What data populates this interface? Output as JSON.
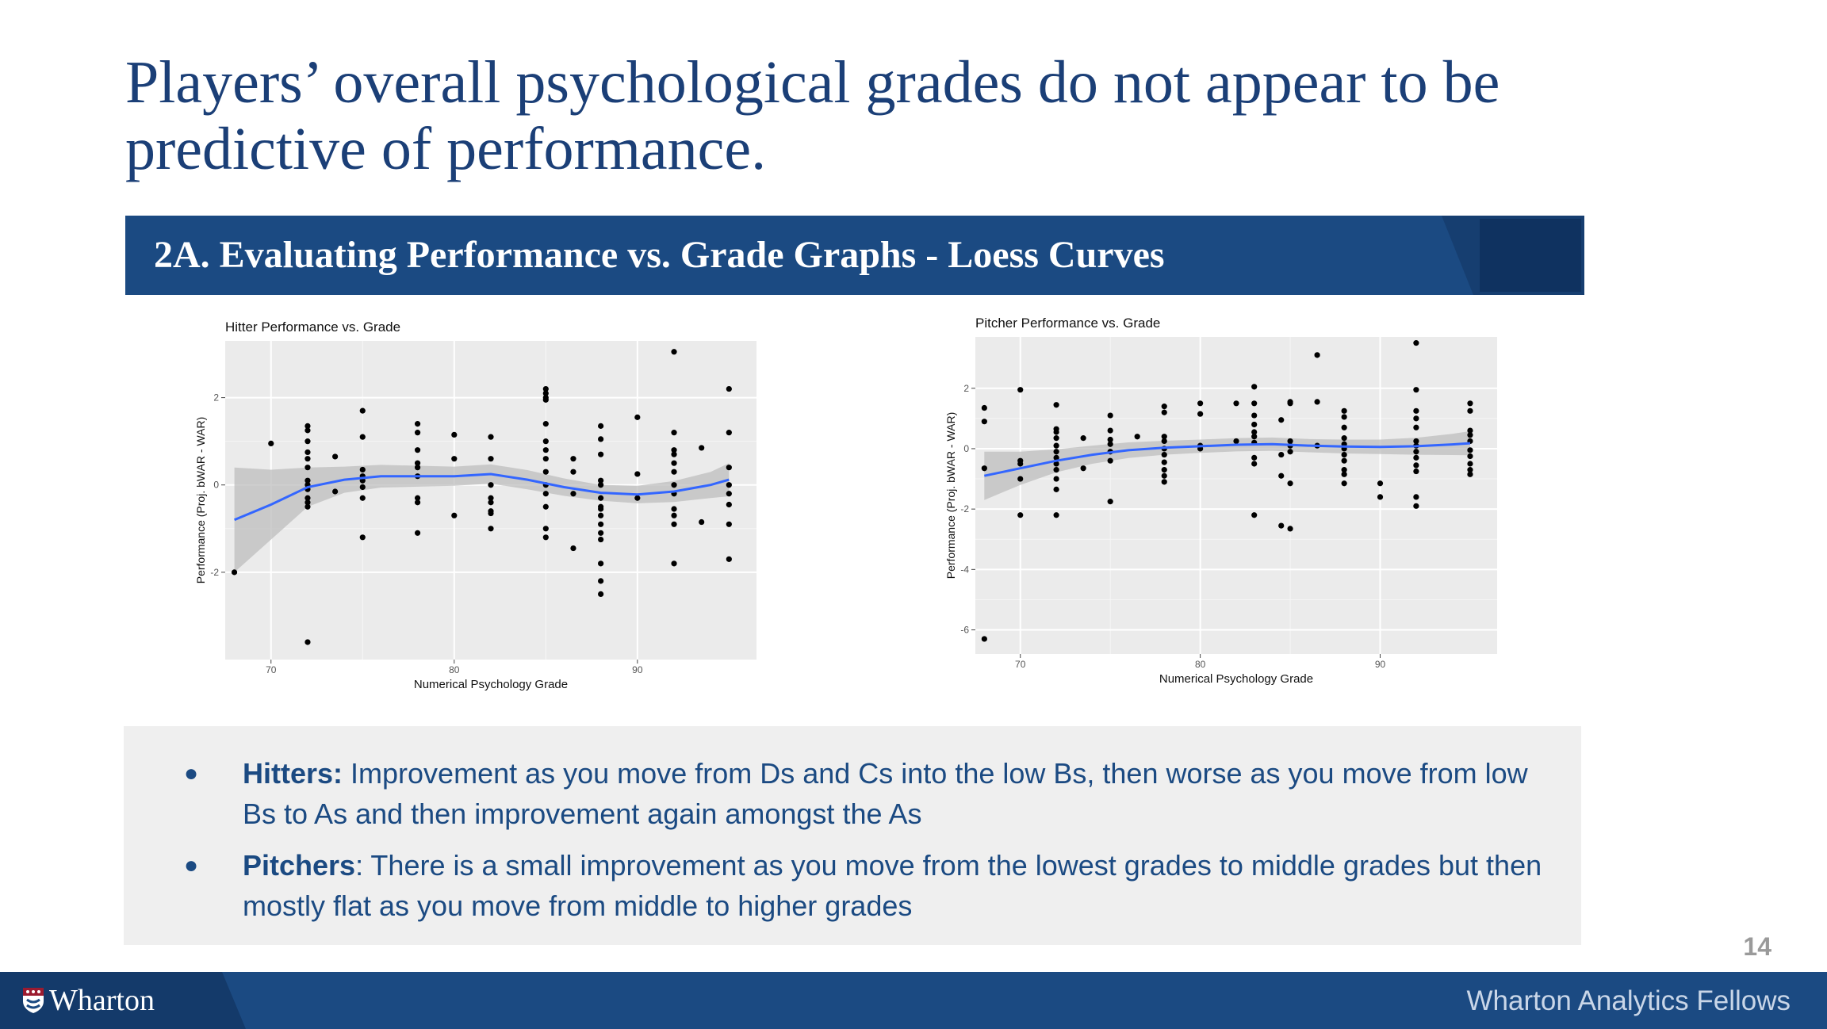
{
  "slide": {
    "title": "Players’ overall psychological grades do not appear to be predictive of performance.",
    "section_heading": "2A. Evaluating Performance vs. Grade Graphs - Loess Curves",
    "page_number": "14"
  },
  "notes": [
    {
      "lead": "Hitters:",
      "text": " Improvement as you move from Ds and Cs into the low Bs, then worse as you move from low Bs to As and then improvement again amongst the As"
    },
    {
      "lead": "Pitchers",
      "text": ": There is a small improvement as you move from the lowest grades to middle grades but then mostly flat as you move from middle to higher grades"
    }
  ],
  "footer": {
    "brand": "Wharton",
    "right_text": "Wharton Analytics Fellows"
  },
  "colors": {
    "navy": "#1b4a82",
    "title": "#1b3f77",
    "loess": "#3366ff",
    "band": "#bdbdbd",
    "panel": "#ebebeb"
  },
  "chart_data": [
    {
      "type": "scatter",
      "title": "Hitter Performance vs. Grade",
      "xlabel": "Numerical Psychology Grade",
      "ylabel": "Performance (Proj. bWAR - WAR)",
      "xlim": [
        67.5,
        96.5
      ],
      "ylim": [
        -4.0,
        3.3
      ],
      "xticks": [
        70,
        80,
        90
      ],
      "yticks": [
        -2,
        0,
        2
      ],
      "grid": true,
      "points": [
        [
          68,
          -2.0
        ],
        [
          70,
          0.95
        ],
        [
          72,
          -3.6
        ],
        [
          72,
          1.35
        ],
        [
          72,
          1.25
        ],
        [
          72,
          1.0
        ],
        [
          72,
          0.75
        ],
        [
          72,
          0.6
        ],
        [
          72,
          0.4
        ],
        [
          72,
          0.1
        ],
        [
          72,
          0.0
        ],
        [
          72,
          -0.1
        ],
        [
          72,
          -0.3
        ],
        [
          72,
          -0.4
        ],
        [
          72,
          -0.5
        ],
        [
          73.5,
          0.65
        ],
        [
          73.5,
          -0.15
        ],
        [
          75,
          1.7
        ],
        [
          75,
          1.1
        ],
        [
          75,
          0.35
        ],
        [
          75,
          0.2
        ],
        [
          75,
          0.1
        ],
        [
          75,
          -0.05
        ],
        [
          75,
          -0.3
        ],
        [
          75,
          -1.2
        ],
        [
          78,
          1.4
        ],
        [
          78,
          1.2
        ],
        [
          78,
          0.8
        ],
        [
          78,
          0.5
        ],
        [
          78,
          0.4
        ],
        [
          78,
          0.2
        ],
        [
          78,
          -0.3
        ],
        [
          78,
          -0.4
        ],
        [
          78,
          -1.1
        ],
        [
          80,
          1.15
        ],
        [
          80,
          0.6
        ],
        [
          80,
          -0.7
        ],
        [
          82,
          1.1
        ],
        [
          82,
          0.6
        ],
        [
          82,
          0.0
        ],
        [
          82,
          -0.3
        ],
        [
          82,
          -0.4
        ],
        [
          82,
          -0.6
        ],
        [
          82,
          -0.65
        ],
        [
          82,
          -1.0
        ],
        [
          85,
          2.2
        ],
        [
          85,
          2.1
        ],
        [
          85,
          2.0
        ],
        [
          85,
          1.95
        ],
        [
          85,
          1.4
        ],
        [
          85,
          1.0
        ],
        [
          85,
          0.8
        ],
        [
          85,
          0.6
        ],
        [
          85,
          0.3
        ],
        [
          85,
          0.0
        ],
        [
          85,
          -0.2
        ],
        [
          85,
          -0.5
        ],
        [
          85,
          -1.0
        ],
        [
          85,
          -1.2
        ],
        [
          86.5,
          0.6
        ],
        [
          86.5,
          0.3
        ],
        [
          86.5,
          -0.2
        ],
        [
          86.5,
          -1.45
        ],
        [
          88,
          1.35
        ],
        [
          88,
          1.05
        ],
        [
          88,
          0.7
        ],
        [
          88,
          0.1
        ],
        [
          88,
          0.0
        ],
        [
          88,
          -0.3
        ],
        [
          88,
          -0.5
        ],
        [
          88,
          -0.55
        ],
        [
          88,
          -0.7
        ],
        [
          88,
          -0.9
        ],
        [
          88,
          -1.1
        ],
        [
          88,
          -1.25
        ],
        [
          88,
          -1.8
        ],
        [
          88,
          -2.2
        ],
        [
          88,
          -2.5
        ],
        [
          90,
          1.55
        ],
        [
          90,
          0.25
        ],
        [
          90,
          -0.3
        ],
        [
          92,
          3.05
        ],
        [
          92,
          1.2
        ],
        [
          92,
          0.8
        ],
        [
          92,
          0.7
        ],
        [
          92,
          0.5
        ],
        [
          92,
          0.3
        ],
        [
          92,
          0.0
        ],
        [
          92,
          -0.2
        ],
        [
          92,
          -0.55
        ],
        [
          92,
          -0.7
        ],
        [
          92,
          -0.9
        ],
        [
          92,
          -1.8
        ],
        [
          93.5,
          0.85
        ],
        [
          93.5,
          -0.85
        ],
        [
          95,
          2.2
        ],
        [
          95,
          1.2
        ],
        [
          95,
          0.4
        ],
        [
          95,
          0.0
        ],
        [
          95,
          -0.2
        ],
        [
          95,
          -0.45
        ],
        [
          95,
          -0.9
        ],
        [
          95,
          -1.7
        ]
      ],
      "loess": [
        [
          68,
          -0.8
        ],
        [
          70,
          -0.45
        ],
        [
          72,
          -0.05
        ],
        [
          74,
          0.12
        ],
        [
          76,
          0.2
        ],
        [
          78,
          0.2
        ],
        [
          80,
          0.2
        ],
        [
          82,
          0.25
        ],
        [
          84,
          0.12
        ],
        [
          86,
          -0.05
        ],
        [
          88,
          -0.18
        ],
        [
          90,
          -0.22
        ],
        [
          92,
          -0.15
        ],
        [
          94,
          0.0
        ],
        [
          95,
          0.12
        ]
      ],
      "band_half_width": [
        [
          68,
          1.2
        ],
        [
          70,
          0.8
        ],
        [
          72,
          0.45
        ],
        [
          74,
          0.3
        ],
        [
          76,
          0.26
        ],
        [
          78,
          0.24
        ],
        [
          80,
          0.22
        ],
        [
          82,
          0.22
        ],
        [
          84,
          0.22
        ],
        [
          86,
          0.2
        ],
        [
          88,
          0.18
        ],
        [
          90,
          0.2
        ],
        [
          92,
          0.24
        ],
        [
          94,
          0.3
        ],
        [
          95,
          0.38
        ]
      ]
    },
    {
      "type": "scatter",
      "title": "Pitcher Performance vs. Grade",
      "xlabel": "Numerical Psychology Grade",
      "ylabel": "Performance (Proj. bWAR - WAR)",
      "xlim": [
        67.5,
        96.5
      ],
      "ylim": [
        -6.8,
        3.7
      ],
      "xticks": [
        70,
        80,
        90
      ],
      "yticks": [
        -6,
        -4,
        -2,
        0,
        2
      ],
      "grid": true,
      "points": [
        [
          68,
          -6.3
        ],
        [
          68,
          1.35
        ],
        [
          68,
          0.9
        ],
        [
          68,
          -0.65
        ],
        [
          70,
          1.95
        ],
        [
          70,
          -0.4
        ],
        [
          70,
          -0.5
        ],
        [
          70,
          -1.0
        ],
        [
          70,
          -2.2
        ],
        [
          72,
          1.45
        ],
        [
          72,
          0.65
        ],
        [
          72,
          0.55
        ],
        [
          72,
          0.35
        ],
        [
          72,
          0.1
        ],
        [
          72,
          -0.1
        ],
        [
          72,
          -0.3
        ],
        [
          72,
          -0.5
        ],
        [
          72,
          -0.7
        ],
        [
          72,
          -1.0
        ],
        [
          72,
          -1.35
        ],
        [
          72,
          -2.2
        ],
        [
          73.5,
          0.35
        ],
        [
          73.5,
          -0.65
        ],
        [
          75,
          1.1
        ],
        [
          75,
          0.6
        ],
        [
          75,
          0.3
        ],
        [
          75,
          0.15
        ],
        [
          75,
          -0.1
        ],
        [
          75,
          -0.4
        ],
        [
          75,
          -1.75
        ],
        [
          76.5,
          0.4
        ],
        [
          78,
          1.4
        ],
        [
          78,
          1.2
        ],
        [
          78,
          0.4
        ],
        [
          78,
          0.25
        ],
        [
          78,
          0.0
        ],
        [
          78,
          -0.2
        ],
        [
          78,
          -0.45
        ],
        [
          78,
          -0.7
        ],
        [
          78,
          -0.9
        ],
        [
          78,
          -1.1
        ],
        [
          80,
          1.5
        ],
        [
          80,
          1.15
        ],
        [
          80,
          0.1
        ],
        [
          80,
          0.0
        ],
        [
          82,
          1.5
        ],
        [
          82,
          0.25
        ],
        [
          83,
          2.05
        ],
        [
          83,
          1.5
        ],
        [
          83,
          1.1
        ],
        [
          83,
          0.8
        ],
        [
          83,
          0.55
        ],
        [
          83,
          0.4
        ],
        [
          83,
          0.2
        ],
        [
          83,
          -0.3
        ],
        [
          83,
          -0.5
        ],
        [
          83,
          -2.2
        ],
        [
          84.5,
          0.95
        ],
        [
          84.5,
          -0.2
        ],
        [
          84.5,
          -0.9
        ],
        [
          84.5,
          -2.55
        ],
        [
          85,
          1.55
        ],
        [
          85,
          1.5
        ],
        [
          85,
          0.25
        ],
        [
          85,
          0.1
        ],
        [
          85,
          -0.1
        ],
        [
          85,
          -1.15
        ],
        [
          85,
          -2.65
        ],
        [
          86.5,
          3.1
        ],
        [
          86.5,
          1.55
        ],
        [
          86.5,
          0.1
        ],
        [
          88,
          1.25
        ],
        [
          88,
          1.05
        ],
        [
          88,
          0.7
        ],
        [
          88,
          0.35
        ],
        [
          88,
          0.15
        ],
        [
          88,
          0.0
        ],
        [
          88,
          -0.2
        ],
        [
          88,
          -0.4
        ],
        [
          88,
          -0.7
        ],
        [
          88,
          -0.85
        ],
        [
          88,
          -1.15
        ],
        [
          90,
          -1.15
        ],
        [
          90,
          -1.6
        ],
        [
          92,
          3.5
        ],
        [
          92,
          1.95
        ],
        [
          92,
          1.25
        ],
        [
          92,
          1.0
        ],
        [
          92,
          0.7
        ],
        [
          92,
          0.25
        ],
        [
          92,
          0.1
        ],
        [
          92,
          -0.1
        ],
        [
          92,
          -0.3
        ],
        [
          92,
          -0.55
        ],
        [
          92,
          -0.75
        ],
        [
          92,
          -1.6
        ],
        [
          92,
          -1.9
        ],
        [
          95,
          1.5
        ],
        [
          95,
          1.25
        ],
        [
          95,
          0.6
        ],
        [
          95,
          0.45
        ],
        [
          95,
          0.25
        ],
        [
          95,
          -0.05
        ],
        [
          95,
          -0.25
        ],
        [
          95,
          -0.5
        ],
        [
          95,
          -0.7
        ],
        [
          95,
          -0.85
        ]
      ],
      "loess": [
        [
          68,
          -0.9
        ],
        [
          70,
          -0.65
        ],
        [
          72,
          -0.4
        ],
        [
          74,
          -0.2
        ],
        [
          76,
          -0.05
        ],
        [
          78,
          0.03
        ],
        [
          80,
          0.08
        ],
        [
          82,
          0.13
        ],
        [
          84,
          0.15
        ],
        [
          86,
          0.1
        ],
        [
          88,
          0.07
        ],
        [
          90,
          0.06
        ],
        [
          92,
          0.08
        ],
        [
          94,
          0.14
        ],
        [
          95,
          0.18
        ]
      ],
      "band_half_width": [
        [
          68,
          0.8
        ],
        [
          70,
          0.55
        ],
        [
          72,
          0.38
        ],
        [
          74,
          0.3
        ],
        [
          76,
          0.26
        ],
        [
          78,
          0.23
        ],
        [
          80,
          0.22
        ],
        [
          82,
          0.22
        ],
        [
          84,
          0.22
        ],
        [
          86,
          0.22
        ],
        [
          88,
          0.23
        ],
        [
          90,
          0.24
        ],
        [
          92,
          0.28
        ],
        [
          94,
          0.35
        ],
        [
          95,
          0.4
        ]
      ]
    }
  ]
}
